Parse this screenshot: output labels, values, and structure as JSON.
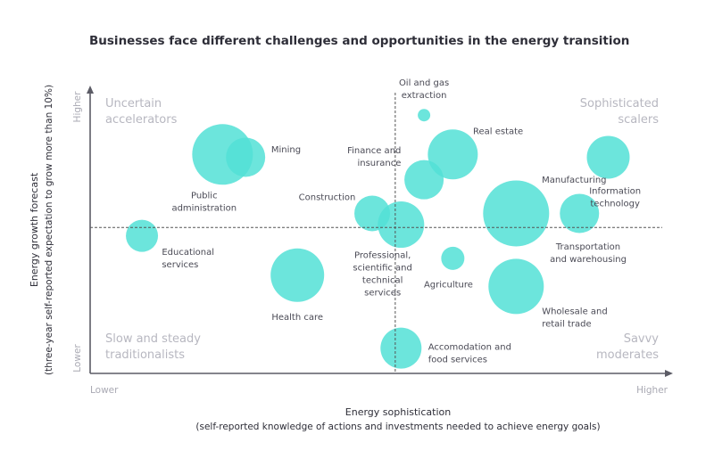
{
  "chart_data": {
    "type": "bubble",
    "title": "Businesses face different challenges and opportunities in the energy transition",
    "xlabel": "Energy sophistication",
    "xlabel_sub": "(self-reported knowledge of actions and investments needed to achieve energy goals)",
    "ylabel": "Energy growth forecast",
    "ylabel_sub": "(three-year self-reported expectation to grow more than 10%)",
    "x_ticks": {
      "low": "Lower",
      "high": "Higher"
    },
    "y_ticks": {
      "low": "Lower",
      "high": "Higher"
    },
    "xlim": [
      0,
      100
    ],
    "ylim": [
      0,
      100
    ],
    "divider": {
      "x": 53,
      "y": 52
    },
    "bubble_color": "#52e0d6",
    "axis_color": "#5c5c66",
    "quadrants": {
      "top_left": [
        "Uncertain",
        "accelerators"
      ],
      "top_right": [
        "Sophisticated",
        "scalers"
      ],
      "bottom_left": [
        "Slow and steady",
        "traditionalists"
      ],
      "bottom_right": [
        "Savvy",
        "moderates"
      ]
    },
    "points": [
      {
        "label": [
          "Oil and gas",
          "extraction"
        ],
        "x": 58,
        "y": 92,
        "size": 7
      },
      {
        "label": [
          "Mining"
        ],
        "x": 27,
        "y": 77,
        "size": 22
      },
      {
        "label": [
          "Public",
          "administration"
        ],
        "x": 23,
        "y": 78,
        "size": 34
      },
      {
        "label": [
          "Real estate"
        ],
        "x": 63,
        "y": 78,
        "size": 28
      },
      {
        "label": [
          "Finance and",
          "insurance"
        ],
        "x": 58,
        "y": 69,
        "size": 22
      },
      {
        "label": [
          "Manufacturing"
        ],
        "x": 74,
        "y": 57,
        "size": 37
      },
      {
        "label": [
          "Information",
          "technology"
        ],
        "x": 90,
        "y": 77,
        "size": 24
      },
      {
        "label": [
          "Transportation",
          "and warehousing"
        ],
        "x": 85,
        "y": 57,
        "size": 22
      },
      {
        "label": [
          "Construction"
        ],
        "x": 49,
        "y": 57,
        "size": 20
      },
      {
        "label": [
          "Professional,",
          "scientific and",
          "technical",
          "services"
        ],
        "x": 54,
        "y": 53,
        "size": 26
      },
      {
        "label": [
          "Educational",
          "services"
        ],
        "x": 9,
        "y": 49,
        "size": 18
      },
      {
        "label": [
          "Agriculture"
        ],
        "x": 63,
        "y": 41,
        "size": 13
      },
      {
        "label": [
          "Health care"
        ],
        "x": 36,
        "y": 35,
        "size": 30
      },
      {
        "label": [
          "Wholesale and",
          "retail trade"
        ],
        "x": 74,
        "y": 31,
        "size": 31
      },
      {
        "label": [
          "Accomodation and",
          "food services"
        ],
        "x": 54,
        "y": 9,
        "size": 23
      }
    ]
  }
}
